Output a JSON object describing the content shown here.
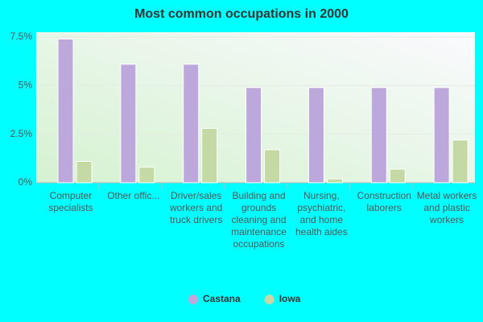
{
  "chart_data": {
    "type": "bar",
    "title": "Most common occupations in 2000",
    "categories": [
      "Computer specialists",
      "Other offic...",
      "Driver/sales workers and truck drivers",
      "Building and grounds cleaning and maintenance occupations",
      "Nursing, psychiatric, and home health aides",
      "Construction laborers",
      "Metal workers and plastic workers"
    ],
    "series": [
      {
        "name": "Castana",
        "color": "#bca8da",
        "values": [
          7.4,
          6.1,
          6.1,
          4.9,
          4.9,
          4.9,
          4.9
        ]
      },
      {
        "name": "Iowa",
        "color": "#c5d9a5",
        "values": [
          1.1,
          0.8,
          2.8,
          1.7,
          0.2,
          0.7,
          2.2
        ]
      }
    ],
    "ylim": [
      0,
      7.75
    ],
    "yticks": [
      {
        "value": 0,
        "label": "0%"
      },
      {
        "value": 2.5,
        "label": "2.5%"
      },
      {
        "value": 5,
        "label": "5%"
      },
      {
        "value": 7.5,
        "label": "7.5%"
      }
    ],
    "grid": true,
    "legend": "bottom"
  }
}
